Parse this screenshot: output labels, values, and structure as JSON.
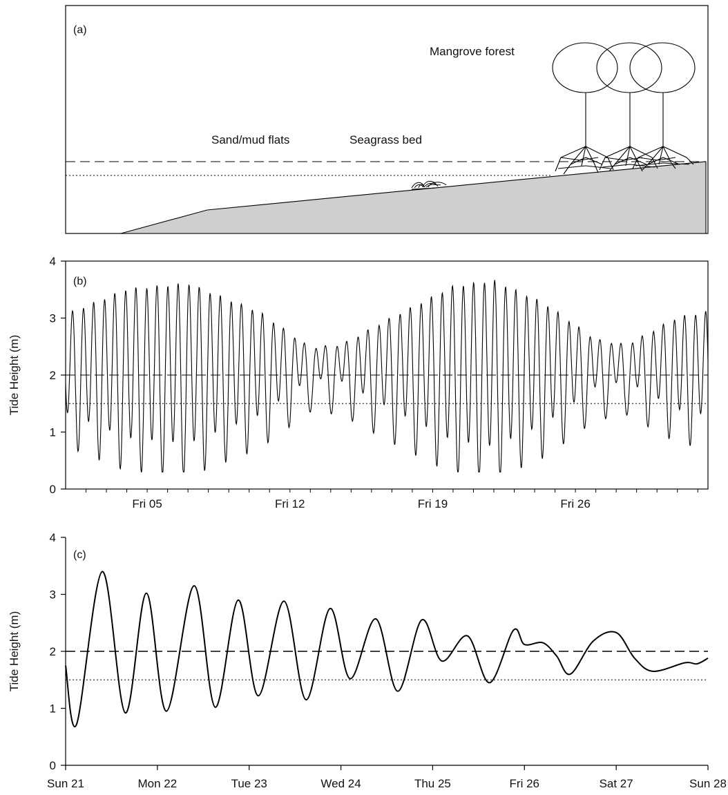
{
  "chart_data": [
    {
      "panel": "a",
      "type": "other",
      "panel_label": "(a)",
      "labels": {
        "mangrove": "Mangrove forest",
        "sandmud": "Sand/mud flats",
        "seagrass": "Seagrass bed"
      },
      "colors": {
        "ground": "#cfcfcf",
        "line": "#000000"
      }
    },
    {
      "panel": "b",
      "type": "line",
      "panel_label": "(b)",
      "ylabel": "Tide Height (m)",
      "ylim": [
        0,
        4
      ],
      "yticks": [
        "0",
        "1",
        "2",
        "3",
        "4"
      ],
      "xlim": [
        0,
        31.5
      ],
      "xtick_labels": [
        {
          "label": "Fri 05",
          "x": 4
        },
        {
          "label": "Fri 12",
          "x": 11
        },
        {
          "label": "Fri 19",
          "x": 18
        },
        {
          "label": "Fri 26",
          "x": 25
        }
      ],
      "reference_lines": {
        "dashed": 2.0,
        "dotted": 1.5
      },
      "series": [
        {
          "mean": 2.05,
          "spring_half_range": [
            1.0,
            1.45,
            1.55,
            1.05,
            0.4,
            0.45,
            0.95,
            1.5,
            1.6,
            1.2,
            0.55,
            0.45,
            0.95,
            1.05
          ],
          "spring_days": [
            0,
            3,
            6,
            9.5,
            12,
            13.5,
            16,
            19,
            21,
            23.5,
            26,
            27.5,
            30,
            31.5
          ],
          "diurnal_amp": 0.3,
          "samples_per_day": 48
        }
      ]
    },
    {
      "panel": "c",
      "type": "line",
      "panel_label": "(c)",
      "ylabel": "Tide Height (m)",
      "ylim": [
        0,
        4
      ],
      "yticks": [
        "0",
        "1",
        "2",
        "3",
        "4"
      ],
      "xlim": [
        0,
        7
      ],
      "xtick_labels": [
        "Sun 21",
        "Mon 22",
        "Tue 23",
        "Wed 24",
        "Thu 25",
        "Fri 26",
        "Sat 27",
        "Sun 28"
      ],
      "reference_lines": {
        "dashed": 2.0,
        "dotted": 1.5
      },
      "series": [
        {
          "x": [
            0,
            0.12,
            0.4,
            0.65,
            0.88,
            1.1,
            1.4,
            1.63,
            1.88,
            2.1,
            2.38,
            2.62,
            2.88,
            3.1,
            3.38,
            3.62,
            3.88,
            4.1,
            4.38,
            4.62,
            4.88,
            5.0,
            5.2,
            5.35,
            5.5,
            5.75,
            6.0,
            6.2,
            6.4,
            6.75,
            6.88,
            7.0
          ],
          "y": [
            1.75,
            0.72,
            3.4,
            0.92,
            3.02,
            0.95,
            3.15,
            1.02,
            2.9,
            1.22,
            2.88,
            1.15,
            2.75,
            1.52,
            2.57,
            1.3,
            2.55,
            1.83,
            2.27,
            1.45,
            2.37,
            2.12,
            2.15,
            1.92,
            1.6,
            2.18,
            2.33,
            1.88,
            1.65,
            1.8,
            1.78,
            1.88
          ]
        }
      ]
    }
  ]
}
